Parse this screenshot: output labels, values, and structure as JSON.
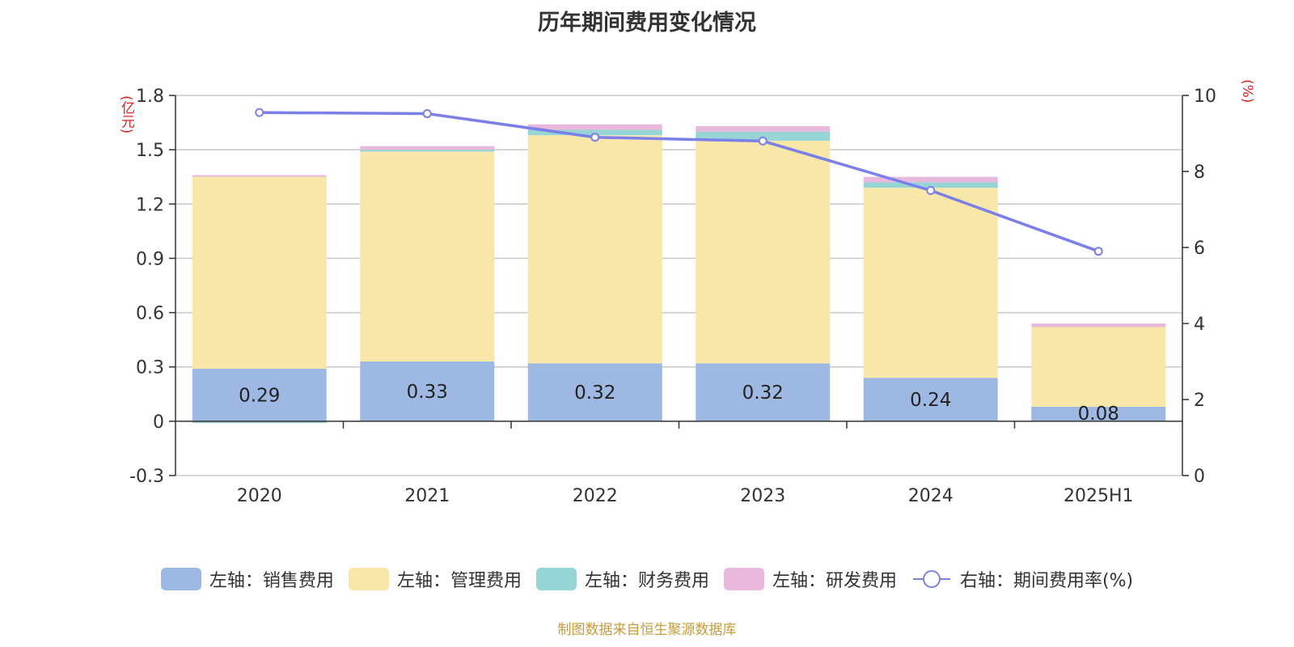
{
  "chart_data": {
    "type": "bar",
    "title": "历年期间费用变化情况",
    "categories": [
      "2020",
      "2021",
      "2022",
      "2023",
      "2024",
      "2025H1"
    ],
    "series": [
      {
        "name": "左轴：销售费用",
        "type": "bar",
        "axis": "left",
        "color": "#9db8e2",
        "values": [
          0.29,
          0.33,
          0.32,
          0.32,
          0.24,
          0.08
        ]
      },
      {
        "name": "左轴：管理费用",
        "type": "bar",
        "axis": "left",
        "color": "#f8e7a8",
        "values": [
          1.06,
          1.16,
          1.26,
          1.23,
          1.05,
          0.44
        ]
      },
      {
        "name": "左轴：财务费用",
        "type": "bar",
        "axis": "left",
        "color": "#96d4d6",
        "values": [
          -0.01,
          0.01,
          0.03,
          0.05,
          0.03,
          0.0
        ]
      },
      {
        "name": "左轴：研发费用",
        "type": "bar",
        "axis": "left",
        "color": "#e9b9dd",
        "values": [
          0.01,
          0.02,
          0.03,
          0.03,
          0.03,
          0.02
        ]
      },
      {
        "name": "右轴：期间费用率(%)",
        "type": "line",
        "axis": "right",
        "color": "#7b7fe8",
        "values": [
          9.55,
          9.52,
          8.9,
          8.8,
          7.5,
          5.9
        ]
      }
    ],
    "data_labels": [
      "0.29",
      "0.33",
      "0.32",
      "0.32",
      "0.24",
      "0.08"
    ],
    "left_axis": {
      "unit": "(亿元)",
      "ticks": [
        "-0.3",
        "0",
        "0.3",
        "0.6",
        "0.9",
        "1.2",
        "1.5",
        "1.8"
      ],
      "ylim": [
        -0.3,
        1.8
      ]
    },
    "right_axis": {
      "unit": "(%)",
      "ticks": [
        "0",
        "2",
        "4",
        "6",
        "8",
        "10"
      ],
      "ylim": [
        0,
        10
      ]
    },
    "grid": true,
    "legend_position": "bottom"
  },
  "footer": "制图数据来自恒生聚源数据库"
}
